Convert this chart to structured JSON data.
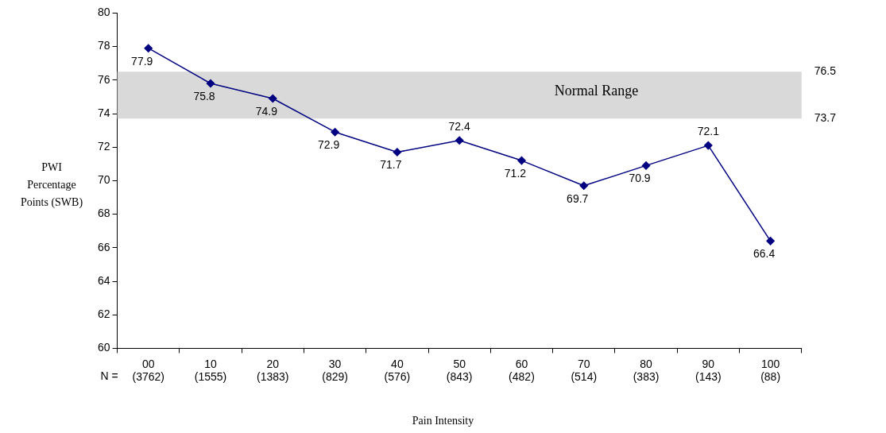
{
  "chart_data": {
    "type": "line",
    "categories": [
      "00\n(3762)",
      "10\n(1555)",
      "20\n(1383)",
      "30\n(829)",
      "40\n(576)",
      "50\n(843)",
      "60\n(482)",
      "70\n(514)",
      "80\n(383)",
      "90\n(143)",
      "100\n(88)"
    ],
    "series": [
      {
        "color": "#000080",
        "values": [
          77.9,
          75.8,
          74.9,
          72.9,
          71.7,
          72.4,
          71.2,
          69.7,
          70.9,
          72.1,
          66.4
        ]
      }
    ],
    "ylim": [
      60,
      80
    ],
    "yticks": [
      60,
      62,
      64,
      66,
      68,
      70,
      72,
      74,
      76,
      78,
      80
    ],
    "y2lim": [
      60,
      80
    ],
    "y2ticks": [
      73.7,
      76.5
    ],
    "xlabel": "Pain Intensity",
    "ylabel": "PWI Percentage Points (SWB)",
    "bands": [
      {
        "axis": "y",
        "from": 73.7,
        "to": 76.5,
        "label": "Normal Range",
        "color": "#d9d9d9"
      }
    ],
    "annotations": [
      "N ="
    ],
    "data_labels": true,
    "grid": false,
    "legend": false,
    "marker": "diamond",
    "line_style": "solid"
  }
}
